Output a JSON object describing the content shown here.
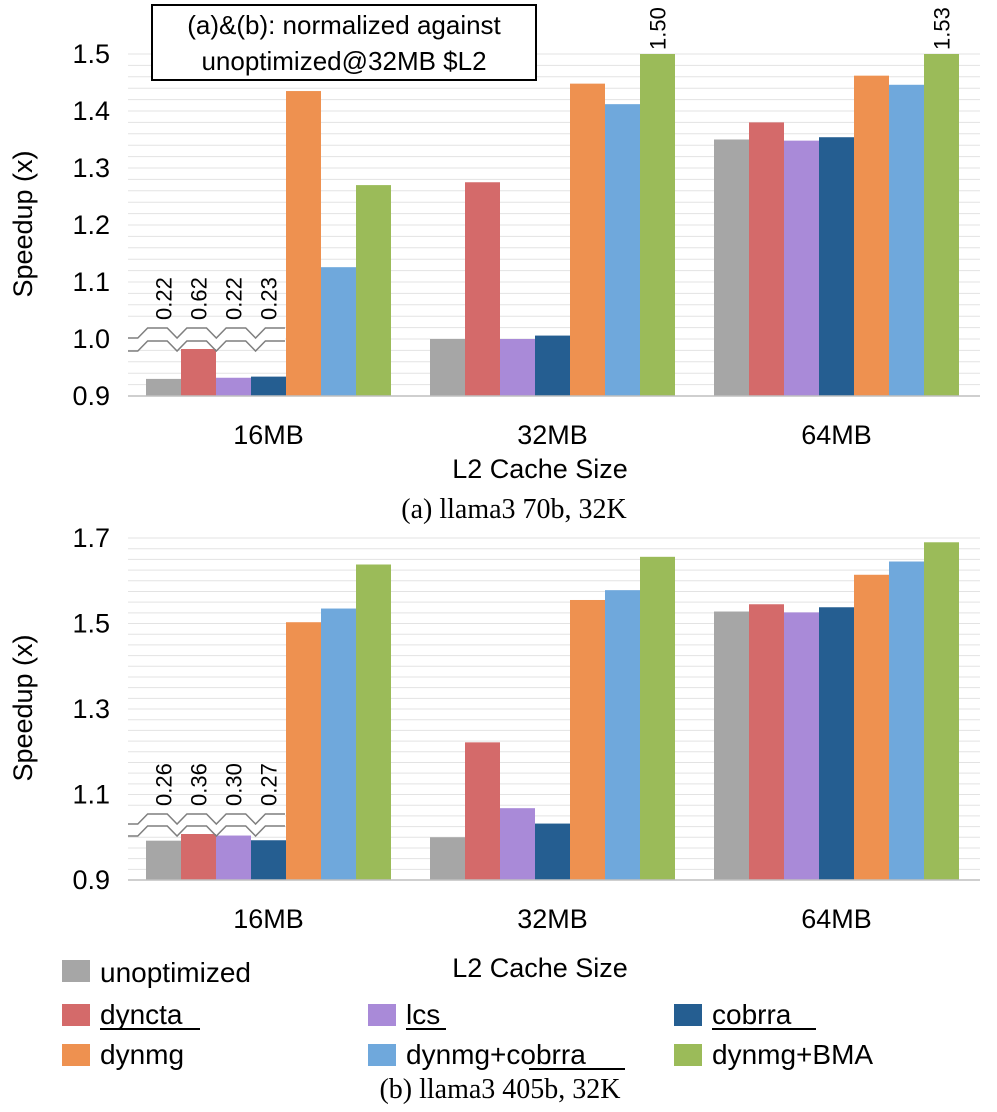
{
  "chart_data": [
    {
      "type": "bar",
      "caption": "(a) llama3 70b, 32K",
      "annotation_lines": [
        "(a)&(b): normalized against",
        "unoptimized@32MB $L2"
      ],
      "xlabel": "L2 Cache Size",
      "ylabel": "Speedup (x)",
      "ylim": [
        0.9,
        1.5
      ],
      "yticks": [
        "0.9",
        "1.0",
        "1.1",
        "1.2",
        "1.3",
        "1.4",
        "1.5"
      ],
      "categories": [
        "16MB",
        "32MB",
        "64MB"
      ],
      "series": [
        {
          "name": "unoptimized",
          "values": [
            0.93,
            1.0,
            1.35
          ]
        },
        {
          "name": "dyncta",
          "values": [
            0.99,
            1.275,
            1.38
          ]
        },
        {
          "name": "lcs",
          "values": [
            0.932,
            1.0,
            1.348
          ]
        },
        {
          "name": "cobrra",
          "values": [
            0.934,
            1.006,
            1.354
          ]
        },
        {
          "name": "dynmg",
          "values": [
            1.435,
            1.448,
            1.462
          ]
        },
        {
          "name": "dynmg+cobrra",
          "values": [
            1.126,
            1.412,
            1.446
          ]
        },
        {
          "name": "dynmg+BMA",
          "values": [
            1.27,
            1.5,
            1.5
          ]
        }
      ],
      "value_labels": [
        {
          "text": "0.22",
          "category": 0,
          "series": 0
        },
        {
          "text": "0.62",
          "category": 0,
          "series": 1
        },
        {
          "text": "0.22",
          "category": 0,
          "series": 2
        },
        {
          "text": "0.23",
          "category": 0,
          "series": 3
        },
        {
          "text": "1.50",
          "category": 1,
          "series": 6
        },
        {
          "text": "1.53",
          "category": 2,
          "series": 6
        }
      ]
    },
    {
      "type": "bar",
      "caption": "(b) llama3 405b, 32K",
      "xlabel": "L2 Cache Size",
      "ylabel": "Speedup (x)",
      "ylim": [
        0.9,
        1.7
      ],
      "yticks": [
        "0.9",
        "1.1",
        "1.3",
        "1.5",
        "1.7"
      ],
      "categories": [
        "16MB",
        "32MB",
        "64MB"
      ],
      "series": [
        {
          "name": "unoptimized",
          "values": [
            0.992,
            1.0,
            1.528
          ]
        },
        {
          "name": "dyncta",
          "values": [
            1.026,
            1.222,
            1.545
          ]
        },
        {
          "name": "lcs",
          "values": [
            1.004,
            1.068,
            1.526
          ]
        },
        {
          "name": "cobrra",
          "values": [
            0.993,
            1.032,
            1.538
          ]
        },
        {
          "name": "dynmg",
          "values": [
            1.503,
            1.555,
            1.614
          ]
        },
        {
          "name": "dynmg+cobrra",
          "values": [
            1.535,
            1.578,
            1.645
          ]
        },
        {
          "name": "dynmg+BMA",
          "values": [
            1.638,
            1.656,
            1.69
          ]
        }
      ],
      "value_labels": [
        {
          "text": "0.26",
          "category": 0,
          "series": 0
        },
        {
          "text": "0.36",
          "category": 0,
          "series": 1
        },
        {
          "text": "0.30",
          "category": 0,
          "series": 2
        },
        {
          "text": "0.27",
          "category": 0,
          "series": 3
        }
      ]
    }
  ],
  "legend": [
    {
      "name": "unoptimized",
      "color": "#a6a6a6",
      "underline": false
    },
    {
      "name": "dyncta",
      "color": "#d46a6a",
      "underline": true
    },
    {
      "name": "lcs",
      "color": "#a98ad8",
      "underline": true
    },
    {
      "name": "cobrra",
      "color": "#255e91",
      "underline": true
    },
    {
      "name": "dynmg",
      "color": "#ee9150",
      "underline": false
    },
    {
      "name": "dynmg+cobrra",
      "color": "#6fa8dc",
      "underline_part": "cobrra",
      "prefix": "dynmg+"
    },
    {
      "name": "dynmg+BMA",
      "color": "#9bbb59",
      "underline": false
    }
  ]
}
